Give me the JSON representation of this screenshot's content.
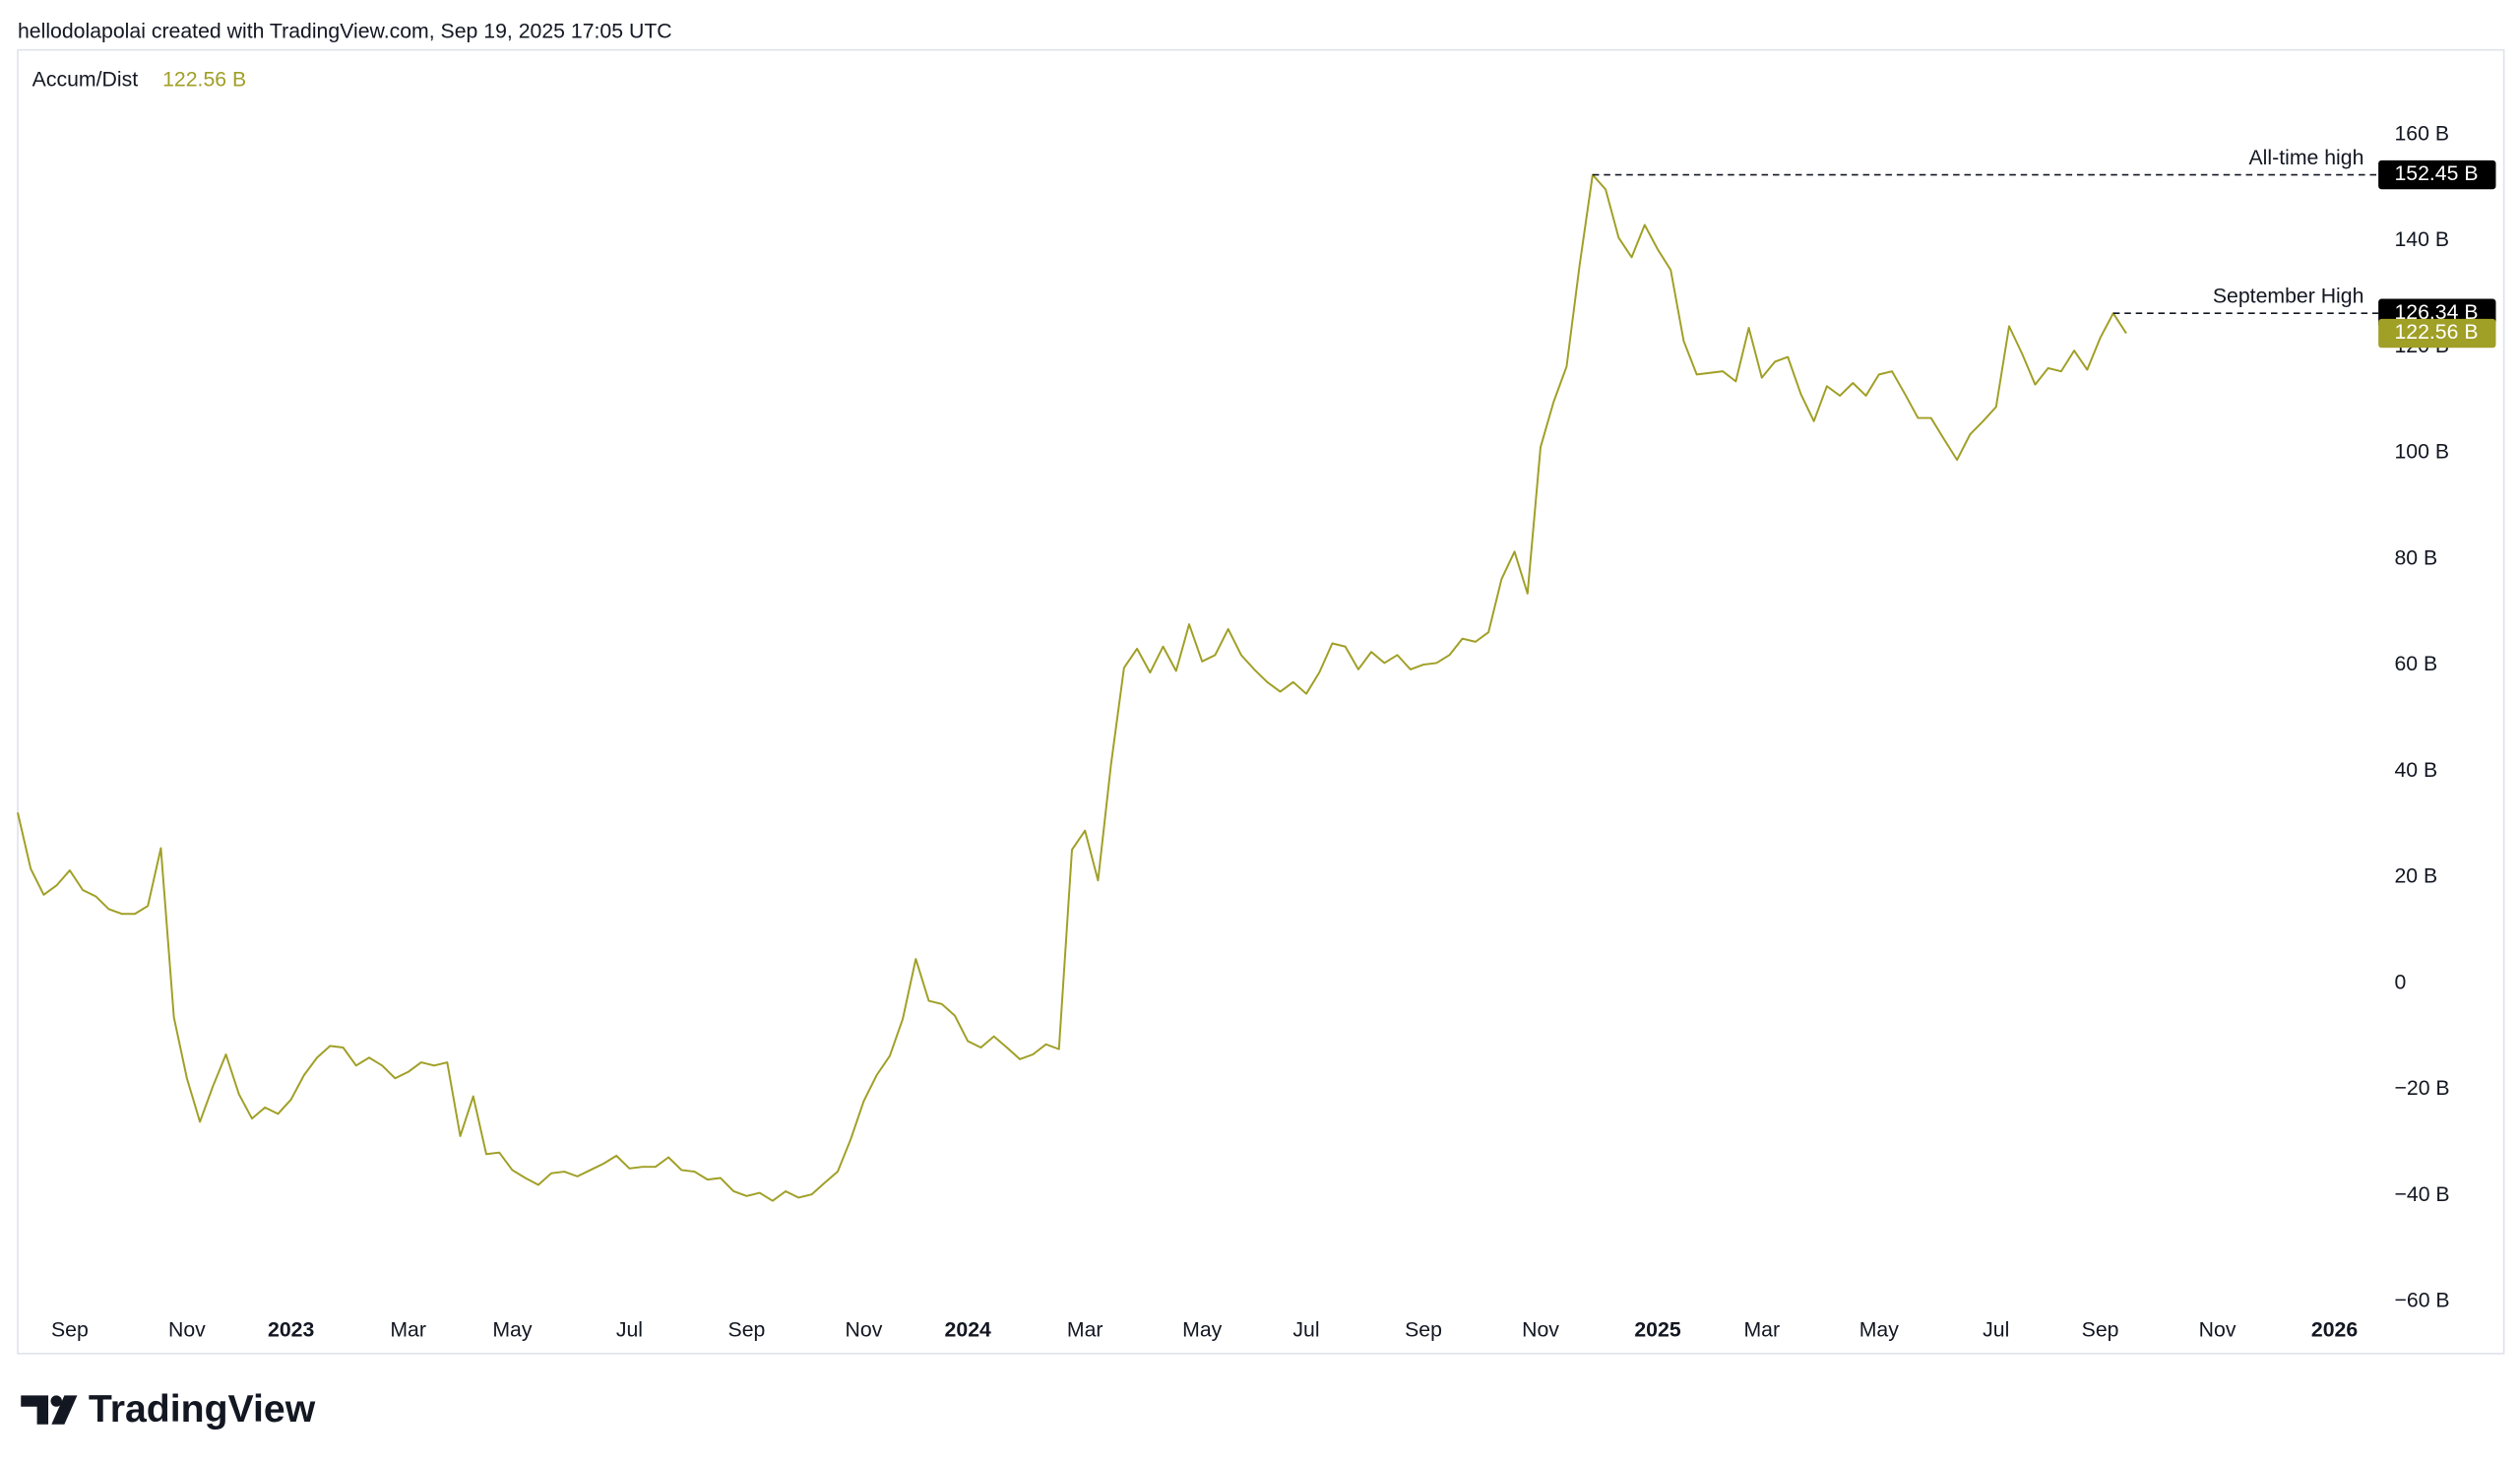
{
  "header": "hellodolapolai created with TradingView.com, Sep 19, 2025 17:05 UTC",
  "brand": "TradingView",
  "chart_data": {
    "type": "line",
    "series": [
      {
        "name": "Accum/Dist",
        "color": "#a09f26",
        "values": [
          32.2,
          21.6,
          16.7,
          18.5,
          21.3,
          17.6,
          16.4,
          14.0,
          13.1,
          13.1,
          14.6,
          25.5,
          -6.4,
          -17.9,
          -26.1,
          -19.4,
          -13.4,
          -20.9,
          -25.5,
          -23.4,
          -24.6,
          -21.9,
          -17.3,
          -14.0,
          -11.8,
          -12.1,
          -15.5,
          -14.0,
          -15.5,
          -17.9,
          -16.7,
          -14.9,
          -15.5,
          -14.9,
          -28.8,
          -21.3,
          -32.2,
          -31.9,
          -35.2,
          -36.7,
          -38.0,
          -35.8,
          -35.5,
          -36.4,
          -35.2,
          -34.0,
          -32.5,
          -34.9,
          -34.6,
          -34.6,
          -32.8,
          -35.2,
          -35.5,
          -37.0,
          -36.7,
          -39.2,
          -40.1,
          -39.5,
          -41.0,
          -39.2,
          -40.4,
          -39.8,
          -37.6,
          -35.5,
          -29.4,
          -22.2,
          -17.3,
          -13.7,
          -6.7,
          4.6,
          -3.3,
          -3.9,
          -6.1,
          -10.9,
          -12.1,
          -10.0,
          -12.1,
          -14.3,
          -13.4,
          -11.5,
          -12.4,
          25.2,
          28.8,
          19.4,
          41.3,
          59.5,
          63.1,
          58.6,
          63.5,
          58.9,
          67.7,
          60.7,
          61.9,
          66.8,
          61.9,
          59.2,
          56.8,
          55.0,
          56.8,
          54.6,
          58.6,
          64.1,
          63.5,
          59.2,
          62.5,
          60.4,
          61.9,
          59.2,
          60.1,
          60.4,
          61.9,
          65.0,
          64.4,
          66.2,
          76.2,
          81.4,
          73.5,
          101.1,
          109.6,
          116.3,
          135.4,
          152.45,
          149.7,
          140.6,
          136.9,
          143.0,
          138.4,
          134.5,
          121.1,
          114.8,
          115.1,
          115.4,
          113.5,
          123.6,
          114.2,
          117.2,
          118.1,
          111.1,
          106.0,
          112.6,
          110.8,
          113.2,
          110.8,
          114.8,
          115.4,
          111.1,
          106.6,
          106.6,
          102.6,
          98.7,
          103.5,
          106.0,
          108.7,
          123.9,
          118.7,
          112.9,
          116.0,
          115.4,
          119.3,
          115.7,
          121.7,
          126.34,
          122.56,
          null,
          null,
          null,
          null,
          null,
          null,
          null,
          null,
          null,
          null,
          null,
          null,
          null,
          null,
          null,
          null,
          null,
          null,
          null
        ]
      }
    ],
    "current_value_label": "122.56 B",
    "categories": [
      null,
      null,
      null,
      null,
      "Sep",
      null,
      null,
      null,
      null,
      null,
      null,
      null,
      null,
      "Nov",
      null,
      null,
      null,
      null,
      null,
      null,
      null,
      "2023",
      null,
      null,
      null,
      null,
      null,
      null,
      null,
      null,
      "Mar",
      null,
      null,
      null,
      null,
      null,
      null,
      null,
      "May",
      null,
      null,
      null,
      null,
      null,
      null,
      null,
      null,
      "Jul",
      null,
      null,
      null,
      null,
      null,
      null,
      null,
      null,
      "Sep",
      null,
      null,
      null,
      null,
      null,
      null,
      null,
      null,
      "Nov",
      null,
      null,
      null,
      null,
      null,
      null,
      null,
      "2024",
      null,
      null,
      null,
      null,
      null,
      null,
      null,
      null,
      "Mar",
      null,
      null,
      null,
      null,
      null,
      null,
      null,
      null,
      "May",
      null,
      null,
      null,
      null,
      null,
      null,
      null,
      "Jul",
      null,
      null,
      null,
      null,
      null,
      null,
      null,
      null,
      "Sep",
      null,
      null,
      null,
      null,
      null,
      null,
      null,
      null,
      "Nov",
      null,
      null,
      null,
      null,
      null,
      null,
      null,
      null,
      "2025",
      null,
      null,
      null,
      null,
      null,
      null,
      null,
      "Mar",
      null,
      null,
      null,
      null,
      null,
      null,
      null,
      null,
      "May",
      null,
      null,
      null,
      null,
      null,
      null,
      null,
      null,
      "Jul",
      null,
      null,
      null,
      null,
      null,
      null,
      null,
      "Sep",
      null,
      null,
      null,
      null,
      null,
      null,
      null,
      null,
      "Nov",
      null,
      null,
      null,
      null,
      null,
      null,
      null,
      null,
      "2026",
      null,
      null,
      null
    ],
    "ylim": [
      -61,
      176
    ],
    "yticks": [
      {
        "value": -60,
        "label": "−60 B"
      },
      {
        "value": -40,
        "label": "−40 B"
      },
      {
        "value": -20,
        "label": "−20 B"
      },
      0,
      {
        "value": 20,
        "label": "20 B"
      },
      {
        "value": 40,
        "label": "40 B"
      },
      {
        "value": 60,
        "label": "60 B"
      },
      {
        "value": 80,
        "label": "80 B"
      },
      {
        "value": 100,
        "label": "100 B"
      },
      {
        "value": 120,
        "label": "120 B"
      },
      {
        "value": 140,
        "label": "140 B"
      },
      {
        "value": 160,
        "label": "160 B"
      }
    ],
    "grid": false,
    "annotations": [
      {
        "text": "All-time high",
        "value": 152.45,
        "label": "152.45 B"
      },
      {
        "text": "September High",
        "value": 126.34,
        "label": "126.34 B"
      }
    ]
  }
}
